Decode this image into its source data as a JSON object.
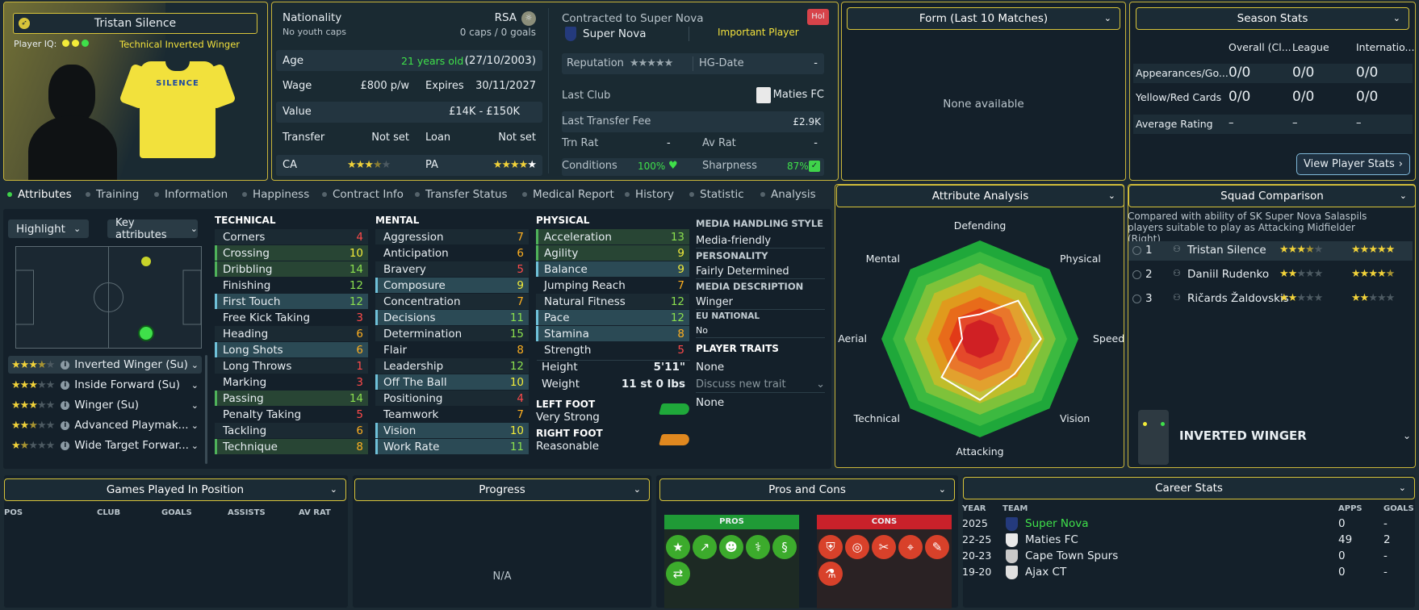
{
  "player": {
    "name": "Tristan Silence",
    "iq_label": "Player IQ:",
    "role": "Technical Inverted Winger",
    "shirt_name": "SILENCE"
  },
  "info": {
    "nationality_label": "Nationality",
    "nationality": "RSA",
    "youth": "No youth caps",
    "caps": "0 caps / 0 goals",
    "age_label": "Age",
    "age": "21 years old",
    "dob": "(27/10/2003)",
    "wage_label": "Wage",
    "wage": "£800 p/w",
    "expires_label": "Expires",
    "expires": "30/11/2027",
    "value_label": "Value",
    "value": "£14K - £150K",
    "transfer_label": "Transfer",
    "transfer": "Not set",
    "loan_label": "Loan",
    "loan": "Not set",
    "ca_label": "CA",
    "pa_label": "PA"
  },
  "contract": {
    "label": "Contracted to Super Nova",
    "club": "Super Nova",
    "status": "Important Player",
    "badge": "Hol",
    "rep_label": "Reputation",
    "hg_label": "HG-Date",
    "hg": "-",
    "last_club_label": "Last Club",
    "last_club": "Maties FC",
    "fee_label": "Last Transfer Fee",
    "fee": "£2.9K",
    "trn_label": "Trn Rat",
    "trn": "-",
    "av_label": "Av Rat",
    "av": "-",
    "cond_label": "Conditions",
    "cond": "100%",
    "sharp_label": "Sharpness",
    "sharp": "87%",
    "cond_level": 1.0,
    "sharp_level": 0.87
  },
  "form": {
    "title": "Form (Last 10 Matches)",
    "empty": "None available"
  },
  "season": {
    "title": "Season Stats",
    "cols": [
      "Overall (Cl...",
      "League",
      "Internatio..."
    ],
    "rows": [
      {
        "label": "Appearances/Go...",
        "vals": [
          "0/0",
          "0/0",
          "0/0"
        ]
      },
      {
        "label": "Yellow/Red Cards",
        "vals": [
          "0/0",
          "0/0",
          "0/0"
        ]
      },
      {
        "label": "Average Rating",
        "vals": [
          "–",
          "–",
          "–"
        ]
      }
    ],
    "button": "View Player Stats"
  },
  "tabs": [
    "Attributes",
    "Training",
    "Information",
    "Happiness",
    "Contract Info",
    "Transfer Status",
    "Medical Report",
    "History",
    "Statistic",
    "Analysis"
  ],
  "controls": {
    "highlight": "Highlight",
    "key_attrs": "Key attributes"
  },
  "roles": [
    {
      "name": "Inverted Winger (Su)",
      "stars": 3.5
    },
    {
      "name": "Inside Forward (Su)",
      "stars": 3
    },
    {
      "name": "Winger (Su)",
      "stars": 3
    },
    {
      "name": "Advanced Playmak...",
      "stars": 2.5
    },
    {
      "name": "Wide Target Forwar...",
      "stars": 1.5
    }
  ],
  "technical": {
    "title": "TECHNICAL",
    "items": [
      [
        "Corners",
        "4",
        "r",
        ""
      ],
      [
        "Crossing",
        "10",
        "y",
        "grn"
      ],
      [
        "Dribbling",
        "14",
        "g",
        "grn"
      ],
      [
        "Finishing",
        "12",
        "g",
        ""
      ],
      [
        "First Touch",
        "12",
        "g",
        "key"
      ],
      [
        "Free Kick Taking",
        "3",
        "r",
        ""
      ],
      [
        "Heading",
        "6",
        "o",
        ""
      ],
      [
        "Long Shots",
        "6",
        "o",
        "key"
      ],
      [
        "Long Throws",
        "1",
        "r",
        ""
      ],
      [
        "Marking",
        "3",
        "r",
        ""
      ],
      [
        "Passing",
        "14",
        "g",
        "grn"
      ],
      [
        "Penalty Taking",
        "5",
        "r",
        ""
      ],
      [
        "Tackling",
        "6",
        "o",
        ""
      ],
      [
        "Technique",
        "8",
        "o",
        "grn"
      ]
    ]
  },
  "mental": {
    "title": "MENTAL",
    "items": [
      [
        "Aggression",
        "7",
        "o",
        ""
      ],
      [
        "Anticipation",
        "6",
        "o",
        ""
      ],
      [
        "Bravery",
        "5",
        "r",
        ""
      ],
      [
        "Composure",
        "9",
        "y",
        "key"
      ],
      [
        "Concentration",
        "7",
        "o",
        ""
      ],
      [
        "Decisions",
        "11",
        "g",
        "key"
      ],
      [
        "Determination",
        "15",
        "g",
        ""
      ],
      [
        "Flair",
        "8",
        "o",
        ""
      ],
      [
        "Leadership",
        "12",
        "g",
        ""
      ],
      [
        "Off The Ball",
        "10",
        "y",
        "key"
      ],
      [
        "Positioning",
        "4",
        "r",
        ""
      ],
      [
        "Teamwork",
        "7",
        "o",
        ""
      ],
      [
        "Vision",
        "10",
        "y",
        "key"
      ],
      [
        "Work Rate",
        "11",
        "g",
        "key"
      ]
    ]
  },
  "physical": {
    "title": "PHYSICAL",
    "items": [
      [
        "Acceleration",
        "13",
        "g",
        "grn"
      ],
      [
        "Agility",
        "9",
        "y",
        "grn"
      ],
      [
        "Balance",
        "9",
        "y",
        "key"
      ],
      [
        "Jumping Reach",
        "7",
        "o",
        ""
      ],
      [
        "Natural Fitness",
        "12",
        "g",
        ""
      ],
      [
        "Pace",
        "12",
        "g",
        "key"
      ],
      [
        "Stamina",
        "8",
        "o",
        "key"
      ],
      [
        "Strength",
        "5",
        "r",
        ""
      ]
    ],
    "height_label": "Height",
    "height": "5'11\"",
    "weight_label": "Weight",
    "weight": "11 st 0 lbs",
    "left_foot_label": "LEFT FOOT",
    "left_foot": "Very Strong",
    "right_foot_label": "RIGHT FOOT",
    "right_foot": "Reasonable"
  },
  "media": {
    "style_label": "MEDIA HANDLING STYLE",
    "style": "Media-friendly",
    "personality_label": "PERSONALITY",
    "personality": "Fairly Determined",
    "desc_label": "MEDIA DESCRIPTION",
    "desc": "Winger",
    "eu_label": "EU NATIONAL",
    "eu": "No",
    "traits_label": "PLAYER TRAITS",
    "traits": "None",
    "discuss": "Discuss new trait",
    "traits2": "None"
  },
  "analysis": {
    "title": "Attribute Analysis",
    "axes": [
      "Defending",
      "Physical",
      "Speed",
      "Vision",
      "Attacking",
      "Technical",
      "Aerial",
      "Mental"
    ],
    "values": [
      0.25,
      0.55,
      0.62,
      0.5,
      0.62,
      0.55,
      0.18,
      0.3
    ]
  },
  "squad": {
    "title": "Squad Comparison",
    "desc": "Compared with ability of SK Super Nova Salaspils players suitable to play as Attacking Midfielder (Right)",
    "rows": [
      {
        "rank": "1",
        "name": "Tristan Silence",
        "ca": 3.5,
        "pa": 5
      },
      {
        "rank": "2",
        "name": "Daniil Rudenko",
        "ca": 2,
        "pa": 4.5
      },
      {
        "rank": "3",
        "name": "Ričards Žaldovskis",
        "ca": 2,
        "pa": 2
      }
    ],
    "position": "INVERTED WINGER"
  },
  "games": {
    "title": "Games Played In Position",
    "cols": [
      "POS",
      "CLUB",
      "GOALS",
      "ASSISTS",
      "AV RAT"
    ]
  },
  "progress": {
    "title": "Progress",
    "empty": "N/A"
  },
  "proscons": {
    "title": "Pros and Cons",
    "pros": "PROS",
    "cons": "CONS"
  },
  "career": {
    "title": "Career Stats",
    "cols": [
      "YEAR",
      "TEAM",
      "APPS",
      "GOALS"
    ],
    "rows": [
      {
        "year": "2025",
        "team": "Super Nova",
        "apps": "0",
        "goals": "-"
      },
      {
        "year": "22-25",
        "team": "Maties FC",
        "apps": "49",
        "goals": "2"
      },
      {
        "year": "20-23",
        "team": "Cape Town Spurs",
        "apps": "0",
        "goals": "-"
      },
      {
        "year": "19-20",
        "team": "Ajax CT",
        "apps": "0",
        "goals": "-"
      }
    ]
  },
  "colors": {
    "accent": "#d8c43a",
    "green": "#3fe04a",
    "panel": "#16232c"
  }
}
